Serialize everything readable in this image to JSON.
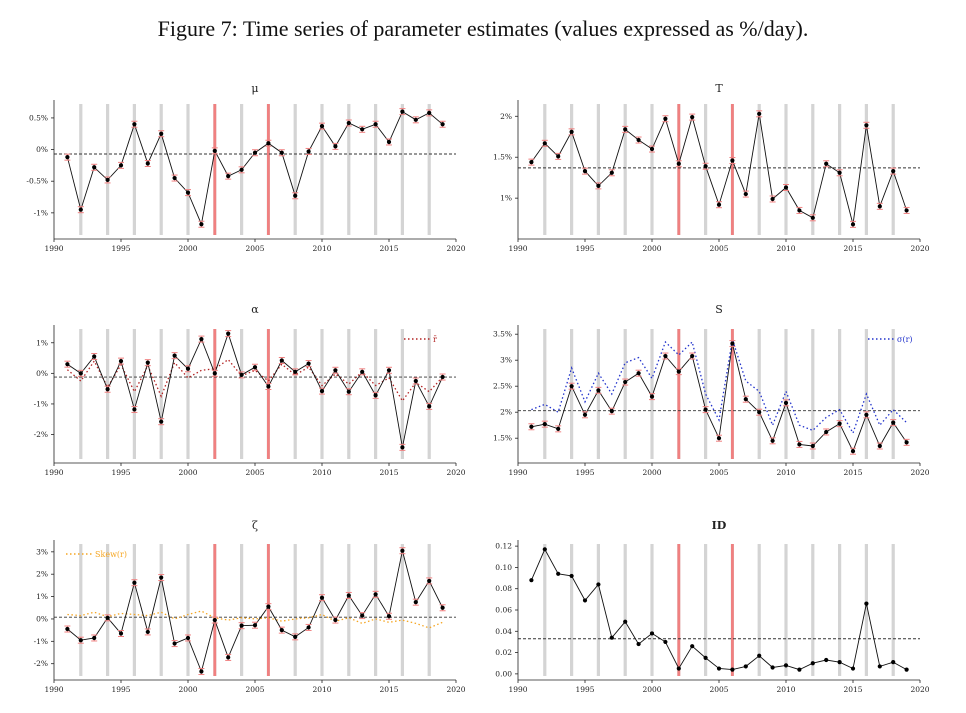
{
  "figure_title": "Figure 7: Time series of parameter estimates (values expressed as %/day).",
  "colors": {
    "year_bar": "#d4d4d4",
    "event_bar": "#f08080",
    "main_line": "#111111",
    "error_bar": "#f08080",
    "alt_red": "#b22222",
    "alt_blue": "#2233cc",
    "alt_orange": "#f5a623"
  },
  "chart_data": [
    {
      "id": "mu",
      "type": "line",
      "title": "μ",
      "bold": false,
      "x": [
        1991,
        1992,
        1993,
        1994,
        1995,
        1996,
        1997,
        1998,
        1999,
        2000,
        2001,
        2002,
        2003,
        2004,
        2005,
        2006,
        2007,
        2008,
        2009,
        2010,
        2011,
        2012,
        2013,
        2014,
        2015,
        2016,
        2017,
        2018,
        2019
      ],
      "values": [
        -0.12,
        -0.95,
        -0.28,
        -0.48,
        -0.25,
        0.4,
        -0.22,
        0.25,
        -0.45,
        -0.68,
        -1.18,
        -0.02,
        -0.42,
        -0.32,
        -0.05,
        0.1,
        -0.05,
        -0.73,
        -0.03,
        0.37,
        0.05,
        0.42,
        0.32,
        0.4,
        0.12,
        0.6,
        0.47,
        0.58,
        0.4
      ],
      "hline": -0.07,
      "ylim": [
        -1.35,
        0.72
      ],
      "xlim": [
        1990,
        2020
      ],
      "yticks": [
        -1,
        -0.5,
        0,
        0.5
      ],
      "ytick_labels": [
        "-1%",
        "-0.5%",
        "0%",
        "0.5%"
      ],
      "xticks": [
        1990,
        1995,
        2000,
        2005,
        2010,
        2015,
        2020
      ],
      "xtick_labels": [
        "1990",
        "1995",
        "2000",
        "2005",
        "2010",
        "2015",
        "2020"
      ],
      "event_years": [
        2002,
        2006
      ],
      "errors": true
    },
    {
      "id": "T",
      "type": "line",
      "title": "T",
      "bold": false,
      "x": [
        1991,
        1992,
        1993,
        1994,
        1995,
        1996,
        1997,
        1998,
        1999,
        2000,
        2001,
        2002,
        2003,
        2004,
        2005,
        2006,
        2007,
        2008,
        2009,
        2010,
        2011,
        2012,
        2013,
        2014,
        2015,
        2016,
        2017,
        2018,
        2019
      ],
      "values": [
        1.44,
        1.67,
        1.51,
        1.81,
        1.33,
        1.15,
        1.31,
        1.84,
        1.71,
        1.6,
        1.97,
        1.42,
        1.99,
        1.39,
        0.92,
        1.46,
        1.05,
        2.03,
        0.99,
        1.13,
        0.85,
        0.76,
        1.42,
        1.31,
        0.68,
        1.89,
        0.9,
        1.33,
        0.85
      ],
      "hline": 1.37,
      "ylim": [
        0.55,
        2.15
      ],
      "xlim": [
        1990,
        2020
      ],
      "yticks": [
        1,
        1.5,
        2
      ],
      "ytick_labels": [
        "1%",
        "1.5%",
        "2%"
      ],
      "xticks": [
        1990,
        1995,
        2000,
        2005,
        2010,
        2015,
        2020
      ],
      "xtick_labels": [
        "1990",
        "1995",
        "2000",
        "2005",
        "2010",
        "2015",
        "2020"
      ],
      "event_years": [
        2002,
        2006
      ],
      "errors": true
    },
    {
      "id": "alpha",
      "type": "line",
      "title": "α",
      "bold": false,
      "x": [
        1991,
        1992,
        1993,
        1994,
        1995,
        1996,
        1997,
        1998,
        1999,
        2000,
        2001,
        2002,
        2003,
        2004,
        2005,
        2006,
        2007,
        2008,
        2009,
        2010,
        2011,
        2012,
        2013,
        2014,
        2015,
        2016,
        2017,
        2018,
        2019
      ],
      "values": [
        0.3,
        0.0,
        0.55,
        -0.52,
        0.4,
        -1.18,
        0.35,
        -1.58,
        0.58,
        0.15,
        1.12,
        0.0,
        1.3,
        -0.05,
        0.2,
        -0.43,
        0.42,
        0.05,
        0.32,
        -0.58,
        0.1,
        -0.6,
        0.05,
        -0.72,
        0.1,
        -2.42,
        -0.25,
        -1.08,
        -0.12
      ],
      "alt_values": [
        0.12,
        -0.25,
        0.4,
        -0.45,
        0.28,
        -0.6,
        0.25,
        -0.75,
        0.35,
        -0.15,
        0.1,
        0.15,
        0.45,
        -0.08,
        0.1,
        -0.25,
        0.3,
        -0.05,
        0.2,
        -0.4,
        -0.02,
        -0.35,
        0.05,
        -0.4,
        -0.15,
        -0.9,
        -0.3,
        -0.6,
        -0.12
      ],
      "alt_name": "r̄",
      "alt_color": "#b22222",
      "hline": -0.12,
      "ylim": [
        -2.8,
        1.45
      ],
      "xlim": [
        1990,
        2020
      ],
      "yticks": [
        -2,
        -1,
        0,
        1
      ],
      "ytick_labels": [
        "-2%",
        "-1%",
        "0%",
        "1%"
      ],
      "xticks": [
        1990,
        1995,
        2000,
        2005,
        2010,
        2015,
        2020
      ],
      "xtick_labels": [
        "1990",
        "1995",
        "2000",
        "2005",
        "2010",
        "2015",
        "2020"
      ],
      "event_years": [
        2002,
        2006
      ],
      "errors": true,
      "legend": "top-right"
    },
    {
      "id": "S",
      "type": "line",
      "title": "S",
      "bold": false,
      "x": [
        1991,
        1992,
        1993,
        1994,
        1995,
        1996,
        1997,
        1998,
        1999,
        2000,
        2001,
        2002,
        2003,
        2004,
        2005,
        2006,
        2007,
        2008,
        2009,
        2010,
        2011,
        2012,
        2013,
        2014,
        2015,
        2016,
        2017,
        2018,
        2019
      ],
      "values": [
        1.72,
        1.77,
        1.68,
        2.5,
        1.95,
        2.42,
        2.02,
        2.58,
        2.75,
        2.3,
        3.08,
        2.78,
        3.08,
        2.05,
        1.5,
        3.32,
        2.25,
        2.0,
        1.45,
        2.18,
        1.38,
        1.35,
        1.62,
        1.78,
        1.25,
        1.95,
        1.35,
        1.8,
        1.42
      ],
      "alt_values": [
        2.05,
        2.15,
        2.0,
        2.85,
        2.2,
        2.75,
        2.35,
        2.95,
        3.05,
        2.65,
        3.35,
        3.1,
        3.35,
        2.35,
        1.85,
        3.4,
        2.6,
        2.4,
        1.75,
        2.4,
        1.75,
        1.65,
        1.9,
        2.05,
        1.6,
        2.35,
        1.75,
        2.05,
        1.8
      ],
      "alt_name": "σ(r)",
      "alt_color": "#2233cc",
      "hline": 2.03,
      "ylim": [
        1.1,
        3.6
      ],
      "xlim": [
        1990,
        2020
      ],
      "yticks": [
        1.5,
        2,
        2.5,
        3,
        3.5
      ],
      "ytick_labels": [
        "1.5%",
        "2%",
        "2.5%",
        "3%",
        "3.5%"
      ],
      "xticks": [
        1990,
        1995,
        2000,
        2005,
        2010,
        2015,
        2020
      ],
      "xtick_labels": [
        "1990",
        "1995",
        "2000",
        "2005",
        "2010",
        "2015",
        "2020"
      ],
      "event_years": [
        2002,
        2006
      ],
      "errors": true,
      "legend": "top-right"
    },
    {
      "id": "zeta",
      "type": "line",
      "title": "ζ",
      "bold": false,
      "x": [
        1991,
        1992,
        1993,
        1994,
        1995,
        1996,
        1997,
        1998,
        1999,
        2000,
        2001,
        2002,
        2003,
        2004,
        2005,
        2006,
        2007,
        2008,
        2009,
        2010,
        2011,
        2012,
        2013,
        2014,
        2015,
        2016,
        2017,
        2018,
        2019
      ],
      "values": [
        -0.45,
        -0.95,
        -0.85,
        0.05,
        -0.65,
        1.62,
        -0.58,
        1.85,
        -1.1,
        -0.85,
        -2.35,
        -0.05,
        -1.72,
        -0.3,
        -0.28,
        0.55,
        -0.5,
        -0.8,
        -0.38,
        0.95,
        -0.05,
        1.05,
        0.15,
        1.1,
        0.12,
        3.05,
        0.75,
        1.7,
        0.5
      ],
      "alt_values": [
        0.2,
        0.15,
        0.3,
        0.1,
        0.25,
        0.2,
        0.15,
        0.3,
        0.0,
        0.2,
        0.35,
        0.05,
        -0.05,
        0.05,
        0.0,
        0.05,
        -0.1,
        0.0,
        0.05,
        0.2,
        -0.1,
        0.05,
        -0.2,
        0.0,
        -0.15,
        -0.05,
        -0.2,
        -0.4,
        -0.15
      ],
      "alt_name": "Skew(r)",
      "alt_color": "#f5a623",
      "hline": 0.08,
      "ylim": [
        -2.55,
        3.35
      ],
      "xlim": [
        1990,
        2020
      ],
      "yticks": [
        -2,
        -1,
        0,
        1,
        2,
        3
      ],
      "ytick_labels": [
        "-2%",
        "-1%",
        "0%",
        "1%",
        "2%",
        "3%"
      ],
      "xticks": [
        1990,
        1995,
        2000,
        2005,
        2010,
        2015,
        2020
      ],
      "xtick_labels": [
        "1990",
        "1995",
        "2000",
        "2005",
        "2010",
        "2015",
        "2020"
      ],
      "event_years": [
        2002,
        2006
      ],
      "errors": true,
      "legend": "top-left"
    },
    {
      "id": "ID",
      "type": "line",
      "title": "ID",
      "bold": true,
      "x": [
        1991,
        1992,
        1993,
        1994,
        1995,
        1996,
        1997,
        1998,
        1999,
        2000,
        2001,
        2002,
        2003,
        2004,
        2005,
        2006,
        2007,
        2008,
        2009,
        2010,
        2011,
        2012,
        2013,
        2014,
        2015,
        2016,
        2017,
        2018,
        2019
      ],
      "values": [
        0.088,
        0.117,
        0.094,
        0.092,
        0.069,
        0.084,
        0.034,
        0.049,
        0.028,
        0.038,
        0.03,
        0.005,
        0.026,
        0.015,
        0.005,
        0.004,
        0.007,
        0.017,
        0.006,
        0.008,
        0.004,
        0.01,
        0.013,
        0.011,
        0.005,
        0.066,
        0.007,
        0.011,
        0.004
      ],
      "hline": 0.033,
      "ylim": [
        -0.002,
        0.122
      ],
      "xlim": [
        1990,
        2020
      ],
      "yticks": [
        0,
        0.02,
        0.04,
        0.06,
        0.08,
        0.1,
        0.12
      ],
      "ytick_labels": [
        "0.00",
        "0.02",
        "0.04",
        "0.06",
        "0.08",
        "0.10",
        "0.12"
      ],
      "xticks": [
        1990,
        1995,
        2000,
        2005,
        2010,
        2015,
        2020
      ],
      "xtick_labels": [
        "1990",
        "1995",
        "2000",
        "2005",
        "2010",
        "2015",
        "2020"
      ],
      "event_years": [
        2002,
        2006
      ],
      "errors": false
    }
  ]
}
